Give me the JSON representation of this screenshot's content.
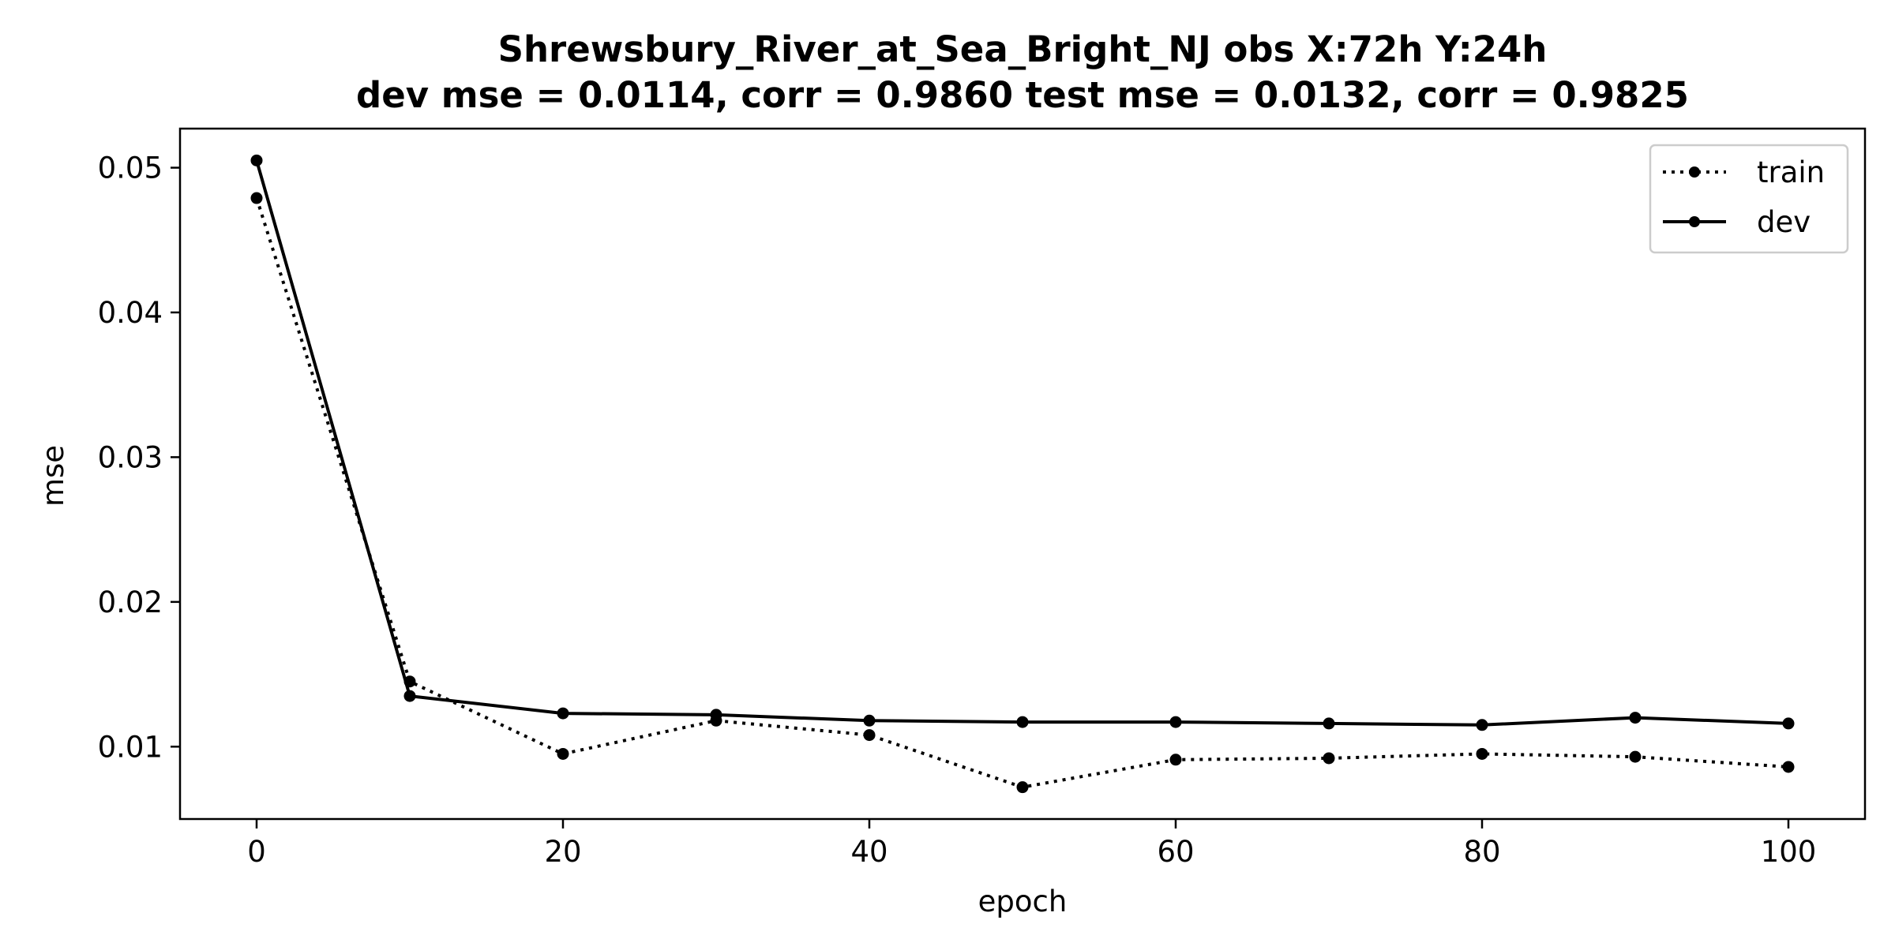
{
  "chart_data": {
    "type": "line",
    "title": "Shrewsbury_River_at_Sea_Bright_NJ   obs   X:72h   Y:24h",
    "subtitle": "dev mse = 0.0114, corr = 0.9860   test mse = 0.0132, corr = 0.9825",
    "xlabel": "epoch",
    "ylabel": "mse",
    "xlim": [
      -5,
      105
    ],
    "ylim": [
      0.005,
      0.0527
    ],
    "x_ticks": [
      0,
      20,
      40,
      60,
      80,
      100
    ],
    "x_tick_labels": [
      "0",
      "20",
      "40",
      "60",
      "80",
      "100"
    ],
    "y_ticks": [
      0.01,
      0.02,
      0.03,
      0.04,
      0.05
    ],
    "y_tick_labels": [
      "0.01",
      "0.02",
      "0.03",
      "0.04",
      "0.05"
    ],
    "grid": false,
    "legend_position": "top-right",
    "x": [
      0,
      10,
      20,
      30,
      40,
      50,
      60,
      70,
      80,
      90,
      100
    ],
    "series": [
      {
        "name": "train",
        "style": "dotted",
        "color": "#000000",
        "values": [
          0.0479,
          0.0145,
          0.0095,
          0.0118,
          0.0108,
          0.0072,
          0.0091,
          0.0092,
          0.0095,
          0.0093,
          0.0086
        ]
      },
      {
        "name": "dev",
        "style": "solid",
        "color": "#000000",
        "values": [
          0.0505,
          0.0135,
          0.0123,
          0.0122,
          0.0118,
          0.0117,
          0.0117,
          0.0116,
          0.0115,
          0.012,
          0.0116
        ]
      }
    ]
  }
}
